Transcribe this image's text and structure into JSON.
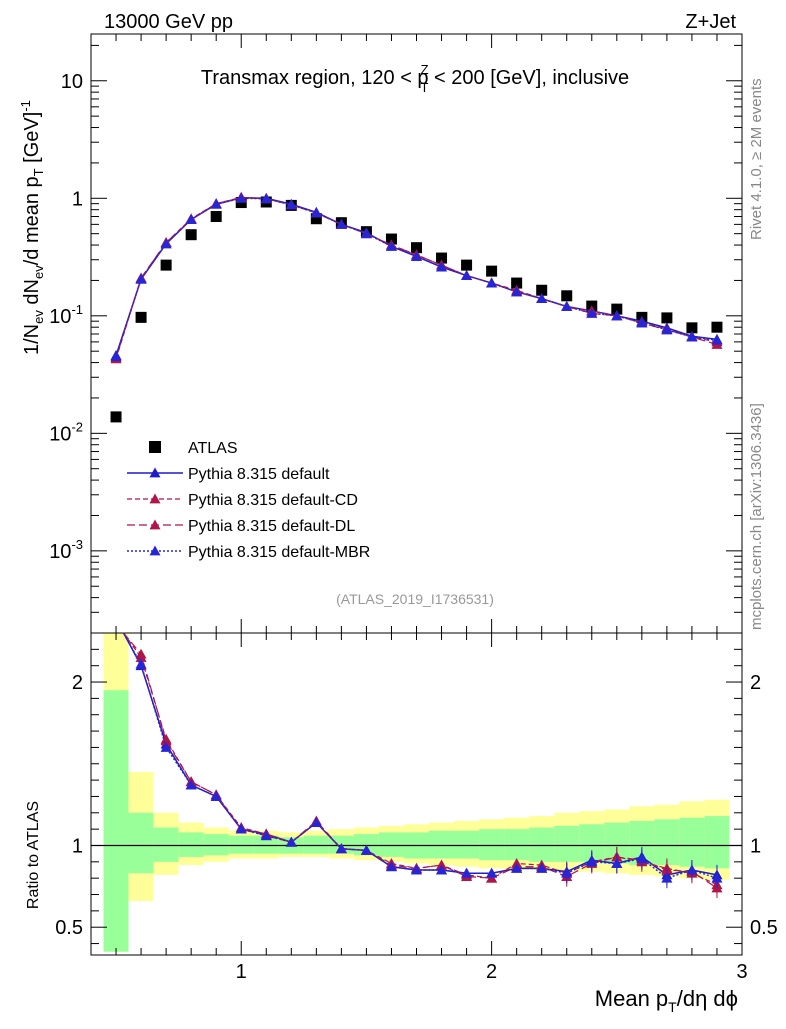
{
  "header": {
    "left": "13000 GeV pp",
    "right": "Z+Jet",
    "plot_title": "Transmax region, 120 < p",
    "plot_title_sup": "Z",
    "plot_title_sub": "T",
    "plot_title_tail": " < 200 [GeV], inclusive",
    "analysis_id": "(ATLAS_2019_I1736531)",
    "side_top": "Rivet 4.1.0, ≥ 2M events",
    "side_bottom": "mcplots.cern.ch [arXiv:1306.3436]"
  },
  "axes": {
    "ylabel_main": "1/N_ev dN_ev/d mean p_T [GeV]^-1",
    "ylabel_ratio": "Ratio to ATLAS",
    "xlabel": "Mean p_T/dη dϕ",
    "main_yticks": [
      "10",
      "1",
      "10^-1",
      "10^-2",
      "10^-3"
    ],
    "ratio_yticks": [
      "2",
      "1",
      "0.5"
    ],
    "xticks": [
      "1",
      "2",
      "3"
    ]
  },
  "legend": {
    "items": [
      {
        "label": "ATLAS",
        "series": "atlas"
      },
      {
        "label": "Pythia 8.315 default",
        "series": "def"
      },
      {
        "label": "Pythia 8.315 default-CD",
        "series": "cd"
      },
      {
        "label": "Pythia 8.315 default-DL",
        "series": "dl"
      },
      {
        "label": "Pythia 8.315 default-MBR",
        "series": "mbr"
      }
    ]
  },
  "chart_data": [
    {
      "type": "scatter",
      "panel": "main",
      "title": "Transmax region, 120 < pT(Z) < 200 [GeV], inclusive",
      "xlabel": "Mean p_T/dη dϕ",
      "ylabel": "1/N_ev dN_ev/d mean p_T [GeV]^-1",
      "xlim": [
        0.4,
        3.0
      ],
      "ylim": [
        0.0002,
        25
      ],
      "yscale": "log",
      "x": [
        0.5,
        0.6,
        0.7,
        0.8,
        0.9,
        1.0,
        1.1,
        1.2,
        1.3,
        1.4,
        1.5,
        1.6,
        1.7,
        1.8,
        1.9,
        2.0,
        2.1,
        2.2,
        2.3,
        2.4,
        2.5,
        2.6,
        2.7,
        2.8,
        2.9
      ],
      "series": [
        {
          "name": "ATLAS",
          "key": "atlas",
          "color": "#000000",
          "values": [
            0.0138,
            0.097,
            0.27,
            0.49,
            0.7,
            0.92,
            0.93,
            0.87,
            0.67,
            0.62,
            0.52,
            0.45,
            0.38,
            0.31,
            0.27,
            0.24,
            0.19,
            0.165,
            0.148,
            0.121,
            0.114,
            0.097,
            0.096,
            0.079,
            0.08
          ]
        },
        {
          "name": "Pythia 8.315 default",
          "key": "def",
          "color": "#1c1cc9",
          "values": [
            0.046,
            0.205,
            0.41,
            0.66,
            0.89,
            1.01,
            1.0,
            0.89,
            0.76,
            0.6,
            0.51,
            0.39,
            0.32,
            0.26,
            0.22,
            0.19,
            0.16,
            0.14,
            0.12,
            0.11,
            0.1,
            0.09,
            0.079,
            0.067,
            0.063
          ]
        },
        {
          "name": "Pythia 8.315 default-CD",
          "key": "cd",
          "color": "#b0154a",
          "values": [
            0.043,
            0.208,
            0.42,
            0.67,
            0.9,
            1.02,
            0.99,
            0.88,
            0.75,
            0.6,
            0.5,
            0.4,
            0.33,
            0.27,
            0.22,
            0.19,
            0.165,
            0.14,
            0.12,
            0.11,
            0.1,
            0.088,
            0.077,
            0.066,
            0.06
          ]
        },
        {
          "name": "Pythia 8.315 default-DL",
          "key": "dl",
          "color": "#b0154a",
          "values": [
            0.044,
            0.21,
            0.42,
            0.66,
            0.9,
            1.01,
            0.99,
            0.88,
            0.75,
            0.6,
            0.5,
            0.4,
            0.33,
            0.27,
            0.22,
            0.19,
            0.16,
            0.14,
            0.12,
            0.105,
            0.1,
            0.087,
            0.076,
            0.066,
            0.057
          ]
        },
        {
          "name": "Pythia 8.315 default-MBR",
          "key": "mbr",
          "color": "#2626d6",
          "values": [
            0.045,
            0.205,
            0.41,
            0.66,
            0.89,
            1.0,
            0.99,
            0.88,
            0.75,
            0.6,
            0.5,
            0.39,
            0.32,
            0.26,
            0.22,
            0.19,
            0.16,
            0.14,
            0.12,
            0.105,
            0.1,
            0.087,
            0.076,
            0.066,
            0.062
          ]
        }
      ]
    },
    {
      "type": "line",
      "panel": "ratio",
      "ylabel": "Ratio to ATLAS",
      "xlabel": "Mean p_T/dη dϕ",
      "xlim": [
        0.4,
        3.0
      ],
      "ylim": [
        0.33,
        2.3
      ],
      "reference": 1,
      "bins": [
        0.45,
        0.55,
        0.65,
        0.75,
        0.85,
        0.95,
        1.05,
        1.15,
        1.25,
        1.35,
        1.45,
        1.55,
        1.65,
        1.75,
        1.85,
        1.95,
        2.05,
        2.15,
        2.25,
        2.35,
        2.45,
        2.55,
        2.65,
        2.75,
        2.85,
        2.95
      ],
      "band_yellow": [
        [
          0.35,
          2.4
        ],
        [
          0.66,
          1.45
        ],
        [
          0.82,
          1.2
        ],
        [
          0.88,
          1.14
        ],
        [
          0.9,
          1.11
        ],
        [
          0.92,
          1.09
        ],
        [
          0.92,
          1.09
        ],
        [
          0.93,
          1.08
        ],
        [
          0.93,
          1.09
        ],
        [
          0.92,
          1.1
        ],
        [
          0.91,
          1.11
        ],
        [
          0.9,
          1.12
        ],
        [
          0.89,
          1.13
        ],
        [
          0.88,
          1.14
        ],
        [
          0.87,
          1.15
        ],
        [
          0.86,
          1.16
        ],
        [
          0.85,
          1.17
        ],
        [
          0.85,
          1.18
        ],
        [
          0.84,
          1.2
        ],
        [
          0.84,
          1.21
        ],
        [
          0.83,
          1.22
        ],
        [
          0.82,
          1.24
        ],
        [
          0.81,
          1.25
        ],
        [
          0.8,
          1.27
        ],
        [
          0.79,
          1.28
        ]
      ],
      "band_green": [
        [
          0.35,
          1.95
        ],
        [
          0.83,
          1.2
        ],
        [
          0.9,
          1.11
        ],
        [
          0.93,
          1.08
        ],
        [
          0.94,
          1.07
        ],
        [
          0.95,
          1.06
        ],
        [
          0.95,
          1.06
        ],
        [
          0.95,
          1.05
        ],
        [
          0.95,
          1.06
        ],
        [
          0.95,
          1.06
        ],
        [
          0.94,
          1.07
        ],
        [
          0.93,
          1.08
        ],
        [
          0.92,
          1.08
        ],
        [
          0.92,
          1.09
        ],
        [
          0.92,
          1.09
        ],
        [
          0.91,
          1.1
        ],
        [
          0.91,
          1.1
        ],
        [
          0.9,
          1.11
        ],
        [
          0.9,
          1.12
        ],
        [
          0.9,
          1.13
        ],
        [
          0.89,
          1.14
        ],
        [
          0.88,
          1.15
        ],
        [
          0.88,
          1.16
        ],
        [
          0.87,
          1.17
        ],
        [
          0.86,
          1.18
        ]
      ],
      "x": [
        0.5,
        0.6,
        0.7,
        0.8,
        0.9,
        1.0,
        1.1,
        1.2,
        1.3,
        1.4,
        1.5,
        1.6,
        1.7,
        1.8,
        1.9,
        2.0,
        2.1,
        2.2,
        2.3,
        2.4,
        2.5,
        2.6,
        2.7,
        2.8,
        2.9
      ],
      "series": [
        {
          "name": "Pythia 8.315 default",
          "key": "def",
          "color": "#1c1cc9",
          "values": [
            null,
            2.1,
            1.62,
            1.37,
            1.3,
            1.1,
            1.07,
            1.02,
            1.14,
            0.98,
            0.97,
            0.87,
            0.85,
            0.85,
            0.83,
            0.83,
            0.86,
            0.86,
            0.84,
            0.91,
            0.89,
            0.93,
            0.82,
            0.85,
            0.82
          ]
        },
        {
          "name": "Pythia 8.315 default-CD",
          "key": "cd",
          "color": "#b0154a",
          "values": [
            null,
            2.15,
            1.65,
            1.39,
            1.31,
            1.11,
            1.07,
            1.02,
            1.14,
            0.98,
            0.97,
            0.89,
            0.86,
            0.88,
            0.82,
            0.8,
            0.89,
            0.88,
            0.83,
            0.9,
            0.93,
            0.9,
            0.86,
            0.83,
            0.76
          ]
        },
        {
          "name": "Pythia 8.315 default-DL",
          "key": "dl",
          "color": "#b0154a",
          "values": [
            null,
            2.17,
            1.64,
            1.39,
            1.31,
            1.1,
            1.06,
            1.02,
            1.15,
            0.98,
            0.97,
            0.88,
            0.86,
            0.88,
            0.81,
            0.8,
            0.87,
            0.87,
            0.81,
            0.89,
            0.93,
            0.91,
            0.85,
            0.84,
            0.74
          ]
        },
        {
          "name": "Pythia 8.315 default-MBR",
          "key": "mbr",
          "color": "#2626d6",
          "values": [
            null,
            2.11,
            1.6,
            1.37,
            1.3,
            1.1,
            1.06,
            1.02,
            1.14,
            0.98,
            0.97,
            0.87,
            0.85,
            0.85,
            0.83,
            0.83,
            0.86,
            0.86,
            0.83,
            0.9,
            0.89,
            0.92,
            0.8,
            0.85,
            0.8
          ]
        }
      ]
    }
  ]
}
